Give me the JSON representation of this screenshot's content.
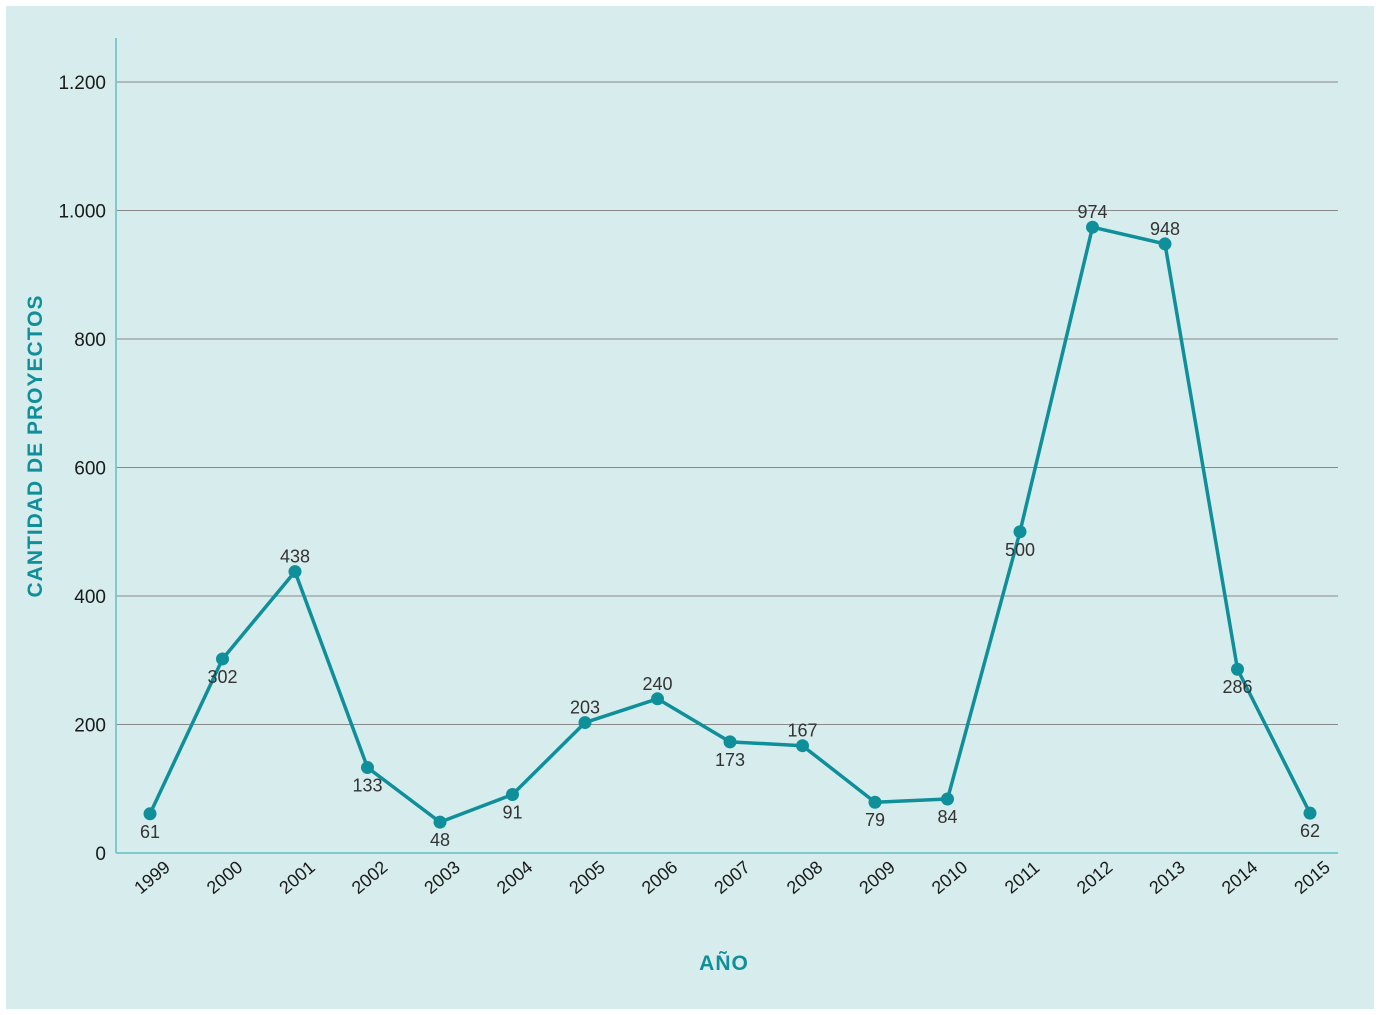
{
  "chart_data": {
    "type": "line",
    "title": "",
    "xlabel": "AÑO",
    "ylabel": "CANTIDAD DE PROYECTOS",
    "ylim": [
      0,
      1200
    ],
    "yticks": [
      0,
      200,
      400,
      600,
      800,
      1000,
      1200
    ],
    "ytick_labels": [
      "0",
      "200",
      "400",
      "600",
      "800",
      "1.000",
      "1.200"
    ],
    "grid": true,
    "legend": "none",
    "categories": [
      "1999",
      "2000",
      "2001",
      "2002",
      "2003",
      "2004",
      "2005",
      "2006",
      "2007",
      "2008",
      "2009",
      "2010",
      "2011",
      "2012",
      "2013",
      "2014",
      "2015"
    ],
    "series": [
      {
        "values": [
          61,
          302,
          438,
          133,
          48,
          91,
          203,
          240,
          173,
          167,
          79,
          84,
          500,
          974,
          948,
          286,
          62
        ],
        "labels": [
          "61",
          "302",
          "438",
          "133",
          "48",
          "91",
          "203",
          "240",
          "173",
          "167",
          "79",
          "84",
          "500",
          "974",
          "948",
          "286",
          "62"
        ],
        "label_position": [
          "below",
          "below",
          "above",
          "below",
          "below",
          "below",
          "above",
          "above",
          "below",
          "above",
          "below",
          "below",
          "below",
          "above",
          "above",
          "below",
          "below"
        ]
      }
    ],
    "colors": {
      "background": "#d7eded",
      "line": "#0f8f9a",
      "axis": "#7fc9cc",
      "grid": "#888888",
      "axis_title": "#0f8f9a"
    }
  }
}
